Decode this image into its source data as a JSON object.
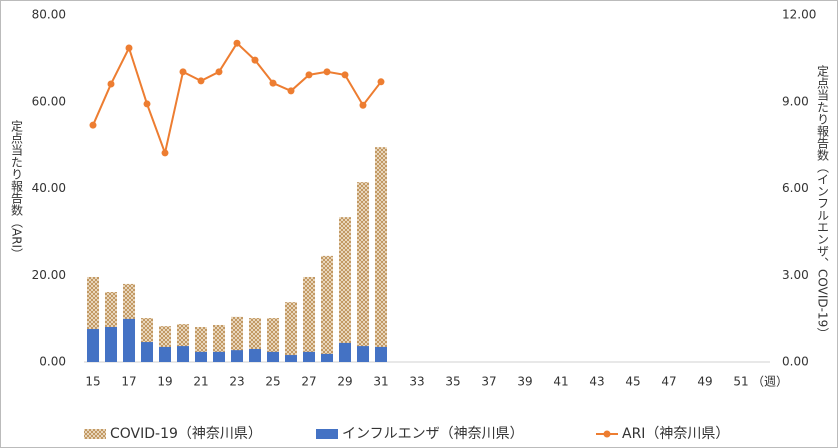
{
  "chart_data": {
    "type": "bar",
    "x_label": "（週）",
    "y_label": "定点当たり報告数（ARI）",
    "y2_label": "定点当たり報告数（インフルエンザ、COVID-19）",
    "categories": [
      "15",
      null,
      "17",
      null,
      "19",
      null,
      "21",
      null,
      "23",
      null,
      "25",
      null,
      "27",
      null,
      "29",
      null,
      "31",
      null,
      "33",
      null,
      "35",
      null,
      "37",
      null,
      "39",
      null,
      "41",
      null,
      "43",
      null,
      "45",
      null,
      "47",
      null,
      "49",
      null,
      "51",
      null
    ],
    "series": [
      {
        "name": "COVID-19（神奈川県）",
        "type": "bar",
        "axis": "y2",
        "color": "#c9a46f",
        "values": [
          2.94,
          2.42,
          2.7,
          1.52,
          1.24,
          1.31,
          1.21,
          1.28,
          1.56,
          1.52,
          1.52,
          2.07,
          2.94,
          3.67,
          5.01,
          6.22,
          7.43,
          null,
          null,
          null,
          null,
          null,
          null,
          null,
          null,
          null,
          null,
          null,
          null,
          null,
          null,
          null,
          null,
          null,
          null,
          null,
          null,
          null
        ]
      },
      {
        "name": "インフルエンザ（神奈川県）",
        "type": "bar",
        "axis": "y2",
        "color": "#4472c4",
        "values": [
          1.14,
          1.21,
          1.49,
          0.69,
          0.52,
          0.55,
          0.35,
          0.35,
          0.41,
          0.45,
          0.35,
          0.24,
          0.35,
          0.28,
          0.66,
          0.55,
          0.52,
          null,
          null,
          null,
          null,
          null,
          null,
          null,
          null,
          null,
          null,
          null,
          null,
          null,
          null,
          null,
          null,
          null,
          null,
          null,
          null,
          null
        ]
      },
      {
        "name": "ARI（神奈川県）",
        "type": "line",
        "axis": "y",
        "color": "#ed7d31",
        "values": [
          54.6,
          64.1,
          72.4,
          59.5,
          48.2,
          66.9,
          64.8,
          66.9,
          73.5,
          69.6,
          64.3,
          62.5,
          66.2,
          66.9,
          66.2,
          59.2,
          64.6,
          null,
          null,
          null,
          null,
          null,
          null,
          null,
          null,
          null,
          null,
          null,
          null,
          null,
          null,
          null,
          null,
          null,
          null,
          null,
          null,
          null
        ]
      }
    ],
    "ylim": [
      0,
      80
    ],
    "yticks": [
      {
        "value": 0,
        "label": "0.00"
      },
      {
        "value": 20,
        "label": "20.00"
      },
      {
        "value": 40,
        "label": "40.00"
      },
      {
        "value": 60,
        "label": "60.00"
      },
      {
        "value": 80,
        "label": "80.00"
      }
    ],
    "y2lim": [
      0,
      12
    ],
    "y2ticks": [
      {
        "value": 0,
        "label": "0.00"
      },
      {
        "value": 3,
        "label": "3.00"
      },
      {
        "value": 6,
        "label": "6.00"
      },
      {
        "value": 9,
        "label": "9.00"
      },
      {
        "value": 12,
        "label": "12.00"
      }
    ],
    "grid": false,
    "legend": "bottom"
  }
}
